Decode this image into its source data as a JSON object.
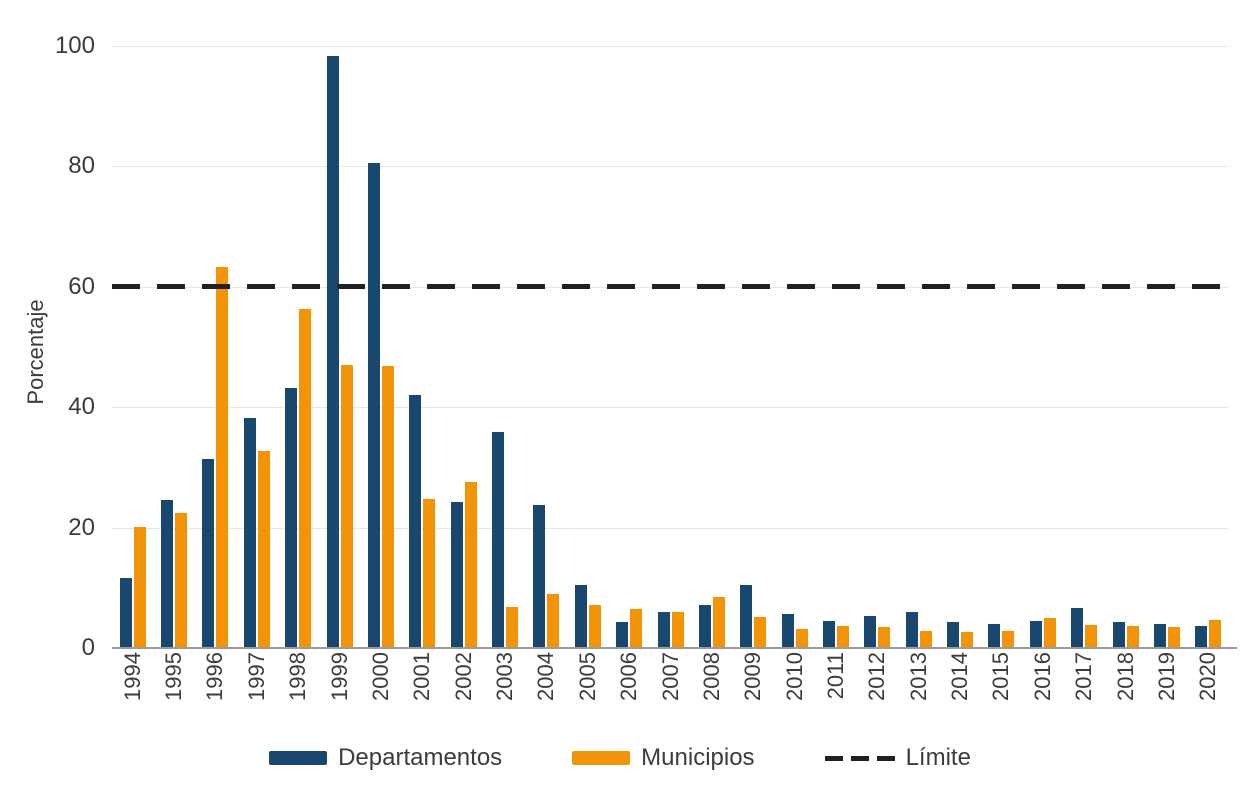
{
  "chart": {
    "y_axis_label": "Porcentaje",
    "legend": [
      {
        "label": "Departamentos",
        "color": "#1A476E",
        "swatch": "rect"
      },
      {
        "label": "Municipios",
        "color": "#F39408",
        "swatch": "rect"
      },
      {
        "label": "Límite",
        "color": "#222222",
        "swatch": "dash"
      }
    ]
  },
  "chart_data": {
    "type": "bar",
    "title": "",
    "xlabel": "",
    "ylabel": "Porcentaje",
    "ylim": [
      0,
      100
    ],
    "yticks": [
      0,
      20,
      40,
      60,
      80,
      100
    ],
    "grid": true,
    "legend_position": "bottom",
    "categories": [
      "1994",
      "1995",
      "1996",
      "1997",
      "1998",
      "1999",
      "2000",
      "2001",
      "2002",
      "2003",
      "2004",
      "2005",
      "2006",
      "2007",
      "2008",
      "2009",
      "2010",
      "2011",
      "2012",
      "2013",
      "2014",
      "2015",
      "2016",
      "2017",
      "2018",
      "2019",
      "2020"
    ],
    "series": [
      {
        "name": "Departamentos",
        "color": "#1A476E",
        "values": [
          11.7,
          24.6,
          31.4,
          38.2,
          43.2,
          98.3,
          80.6,
          42.0,
          24.2,
          35.8,
          23.8,
          10.4,
          4.3,
          5.9,
          7.2,
          10.4,
          5.6,
          4.5,
          5.3,
          6.0,
          4.3,
          4.0,
          4.5,
          6.6,
          4.3,
          4.0,
          3.7
        ]
      },
      {
        "name": "Municipios",
        "color": "#F39408",
        "values": [
          20.1,
          22.4,
          63.3,
          32.8,
          56.3,
          47.0,
          46.8,
          24.8,
          27.5,
          6.8,
          8.9,
          7.2,
          6.4,
          5.9,
          8.4,
          5.1,
          3.2,
          3.7,
          3.5,
          2.8,
          2.7,
          2.8,
          5.0,
          3.8,
          3.7,
          3.5,
          4.7
        ]
      }
    ],
    "reference_line": {
      "name": "Límite",
      "value": 60,
      "style": "dashed",
      "color": "#222222"
    }
  }
}
